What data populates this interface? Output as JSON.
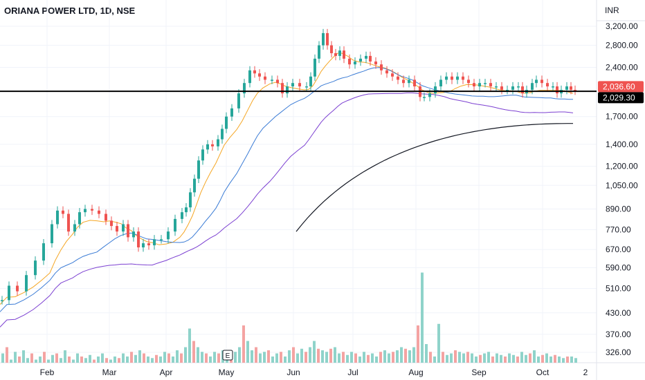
{
  "header": {
    "title": "ORIANA POWER LTD, 1D, NSE",
    "currency": "INR"
  },
  "price_axis": {
    "ticks": [
      {
        "label": "3,200.00",
        "value": 3200
      },
      {
        "label": "2,800.00",
        "value": 2800
      },
      {
        "label": "2,400.00",
        "value": 2400
      },
      {
        "label": "1,700.00",
        "value": 1700
      },
      {
        "label": "1,400.00",
        "value": 1400
      },
      {
        "label": "1,200.00",
        "value": 1200
      },
      {
        "label": "1,050.00",
        "value": 1050
      },
      {
        "label": "890.00",
        "value": 890
      },
      {
        "label": "770.00",
        "value": 770
      },
      {
        "label": "670.00",
        "value": 670
      },
      {
        "label": "590.00",
        "value": 590
      },
      {
        "label": "510.00",
        "value": 510
      },
      {
        "label": "430.00",
        "value": 430
      },
      {
        "label": "370.00",
        "value": 370
      },
      {
        "label": "326.00",
        "value": 326
      }
    ],
    "last_price_label": "2,036.60",
    "last_price_value": 2036.6,
    "line_price_label": "2,029.30",
    "line_price_value": 2029.3,
    "scale": "log"
  },
  "time_axis": {
    "labels": [
      "Feb",
      "Mar",
      "Apr",
      "May",
      "Jun",
      "Jul",
      "Aug",
      "Sep",
      "Oct"
    ],
    "corner_label": "2"
  },
  "earnings_marker": "E",
  "colors": {
    "up": "#26a69a",
    "down": "#ef5350",
    "vol_up": "#8fd3ca",
    "vol_down": "#f4a3a2",
    "ma_fast": "#f5a623",
    "ma_mid": "#3a7bd5",
    "ma_slow": "#7b3fd1",
    "ma_long": "#131722",
    "hline": "#000000"
  },
  "chart_data": {
    "type": "candlestick",
    "y_scale": "log",
    "ylim": [
      300,
      3500
    ],
    "x_range": [
      "Jan",
      "Oct"
    ],
    "horizontal_line": 2029.3,
    "price_path": [
      [
        0,
        470
      ],
      [
        10,
        520
      ],
      [
        22,
        500
      ],
      [
        35,
        560
      ],
      [
        48,
        620
      ],
      [
        60,
        700
      ],
      [
        72,
        800
      ],
      [
        80,
        880
      ],
      [
        88,
        860
      ],
      [
        96,
        760
      ],
      [
        105,
        800
      ],
      [
        112,
        870
      ],
      [
        120,
        890
      ],
      [
        130,
        880
      ],
      [
        140,
        860
      ],
      [
        150,
        820
      ],
      [
        158,
        790
      ],
      [
        166,
        760
      ],
      [
        175,
        800
      ],
      [
        182,
        730
      ],
      [
        190,
        760
      ],
      [
        197,
        680
      ],
      [
        204,
        700
      ],
      [
        212,
        690
      ],
      [
        220,
        720
      ],
      [
        230,
        720
      ],
      [
        240,
        760
      ],
      [
        250,
        830
      ],
      [
        260,
        870
      ],
      [
        266,
        900
      ],
      [
        272,
        1000
      ],
      [
        278,
        1100
      ],
      [
        284,
        1250
      ],
      [
        290,
        1350
      ],
      [
        297,
        1400
      ],
      [
        304,
        1380
      ],
      [
        312,
        1450
      ],
      [
        318,
        1560
      ],
      [
        324,
        1700
      ],
      [
        332,
        1800
      ],
      [
        342,
        2000
      ],
      [
        350,
        2150
      ],
      [
        358,
        2350
      ],
      [
        365,
        2300
      ],
      [
        372,
        2250
      ],
      [
        380,
        2200
      ],
      [
        390,
        2200
      ],
      [
        398,
        2150
      ],
      [
        405,
        2000
      ],
      [
        412,
        2100
      ],
      [
        420,
        2150
      ],
      [
        430,
        2100
      ],
      [
        440,
        2100
      ],
      [
        446,
        2250
      ],
      [
        452,
        2550
      ],
      [
        458,
        2800
      ],
      [
        464,
        3050
      ],
      [
        470,
        2800
      ],
      [
        476,
        2650
      ],
      [
        482,
        2600
      ],
      [
        488,
        2700
      ],
      [
        494,
        2550
      ],
      [
        502,
        2450
      ],
      [
        510,
        2500
      ],
      [
        518,
        2550
      ],
      [
        526,
        2600
      ],
      [
        532,
        2500
      ],
      [
        540,
        2450
      ],
      [
        548,
        2350
      ],
      [
        556,
        2300
      ],
      [
        564,
        2250
      ],
      [
        572,
        2200
      ],
      [
        580,
        2150
      ],
      [
        588,
        2200
      ],
      [
        596,
        2100
      ],
      [
        604,
        1950
      ],
      [
        610,
        1950
      ],
      [
        618,
        2000
      ],
      [
        626,
        2100
      ],
      [
        634,
        2200
      ],
      [
        642,
        2250
      ],
      [
        650,
        2200
      ],
      [
        658,
        2250
      ],
      [
        666,
        2200
      ],
      [
        674,
        2150
      ],
      [
        682,
        2100
      ],
      [
        690,
        2150
      ],
      [
        698,
        2150
      ],
      [
        706,
        2100
      ],
      [
        714,
        2100
      ],
      [
        722,
        2050
      ],
      [
        730,
        2050
      ],
      [
        738,
        2100
      ],
      [
        746,
        2100
      ],
      [
        752,
        2000
      ],
      [
        758,
        2050
      ],
      [
        766,
        2150
      ],
      [
        772,
        2200
      ],
      [
        780,
        2150
      ],
      [
        788,
        2100
      ],
      [
        796,
        2100
      ],
      [
        802,
        2000
      ],
      [
        808,
        2050
      ],
      [
        816,
        2100
      ],
      [
        822,
        2050
      ],
      [
        828,
        2040
      ]
    ],
    "volume": [
      [
        0,
        340
      ],
      [
        6,
        360
      ],
      [
        12,
        320
      ],
      [
        18,
        345
      ],
      [
        24,
        330
      ],
      [
        30,
        350
      ],
      [
        36,
        325
      ],
      [
        42,
        340
      ],
      [
        48,
        320
      ],
      [
        54,
        330
      ],
      [
        60,
        345
      ],
      [
        66,
        320
      ],
      [
        72,
        335
      ],
      [
        78,
        340
      ],
      [
        84,
        325
      ],
      [
        90,
        350
      ],
      [
        96,
        330
      ],
      [
        102,
        320
      ],
      [
        108,
        340
      ],
      [
        114,
        330
      ],
      [
        120,
        325
      ],
      [
        126,
        335
      ],
      [
        132,
        320
      ],
      [
        138,
        330
      ],
      [
        144,
        340
      ],
      [
        150,
        325
      ],
      [
        156,
        320
      ],
      [
        162,
        330
      ],
      [
        168,
        325
      ],
      [
        174,
        340
      ],
      [
        180,
        330
      ],
      [
        186,
        345
      ],
      [
        192,
        335
      ],
      [
        198,
        350
      ],
      [
        204,
        340
      ],
      [
        210,
        330
      ],
      [
        216,
        325
      ],
      [
        222,
        335
      ],
      [
        228,
        330
      ],
      [
        234,
        345
      ],
      [
        240,
        340
      ],
      [
        246,
        330
      ],
      [
        252,
        350
      ],
      [
        258,
        340
      ],
      [
        264,
        360
      ],
      [
        270,
        420
      ],
      [
        276,
        380
      ],
      [
        282,
        360
      ],
      [
        288,
        345
      ],
      [
        294,
        340
      ],
      [
        300,
        330
      ],
      [
        306,
        345
      ],
      [
        312,
        340
      ],
      [
        318,
        350
      ],
      [
        324,
        340
      ],
      [
        330,
        330
      ],
      [
        336,
        345
      ],
      [
        342,
        360
      ],
      [
        348,
        430
      ],
      [
        354,
        380
      ],
      [
        360,
        350
      ],
      [
        366,
        360
      ],
      [
        372,
        340
      ],
      [
        378,
        345
      ],
      [
        384,
        350
      ],
      [
        390,
        330
      ],
      [
        396,
        340
      ],
      [
        402,
        345
      ],
      [
        408,
        330
      ],
      [
        414,
        350
      ],
      [
        420,
        360
      ],
      [
        426,
        340
      ],
      [
        432,
        355
      ],
      [
        438,
        345
      ],
      [
        444,
        360
      ],
      [
        450,
        380
      ],
      [
        456,
        355
      ],
      [
        462,
        350
      ],
      [
        468,
        345
      ],
      [
        474,
        355
      ],
      [
        480,
        360
      ],
      [
        486,
        340
      ],
      [
        492,
        345
      ],
      [
        498,
        335
      ],
      [
        504,
        345
      ],
      [
        510,
        340
      ],
      [
        516,
        330
      ],
      [
        522,
        345
      ],
      [
        528,
        335
      ],
      [
        534,
        340
      ],
      [
        540,
        330
      ],
      [
        546,
        345
      ],
      [
        552,
        350
      ],
      [
        558,
        340
      ],
      [
        564,
        345
      ],
      [
        570,
        350
      ],
      [
        576,
        360
      ],
      [
        582,
        355
      ],
      [
        588,
        350
      ],
      [
        594,
        360
      ],
      [
        600,
        430
      ],
      [
        606,
        600
      ],
      [
        612,
        370
      ],
      [
        618,
        345
      ],
      [
        624,
        330
      ],
      [
        630,
        435
      ],
      [
        636,
        345
      ],
      [
        642,
        335
      ],
      [
        648,
        340
      ],
      [
        654,
        350
      ],
      [
        660,
        345
      ],
      [
        666,
        340
      ],
      [
        672,
        345
      ],
      [
        678,
        340
      ],
      [
        684,
        330
      ],
      [
        690,
        335
      ],
      [
        696,
        340
      ],
      [
        702,
        345
      ],
      [
        708,
        330
      ],
      [
        714,
        340
      ],
      [
        720,
        335
      ],
      [
        726,
        330
      ],
      [
        732,
        340
      ],
      [
        738,
        335
      ],
      [
        744,
        330
      ],
      [
        750,
        345
      ],
      [
        756,
        335
      ],
      [
        762,
        340
      ],
      [
        768,
        350
      ],
      [
        774,
        330
      ],
      [
        780,
        335
      ],
      [
        786,
        340
      ],
      [
        792,
        330
      ],
      [
        798,
        335
      ],
      [
        804,
        330
      ],
      [
        810,
        325
      ],
      [
        816,
        330
      ],
      [
        822,
        330
      ],
      [
        828,
        325
      ]
    ]
  }
}
